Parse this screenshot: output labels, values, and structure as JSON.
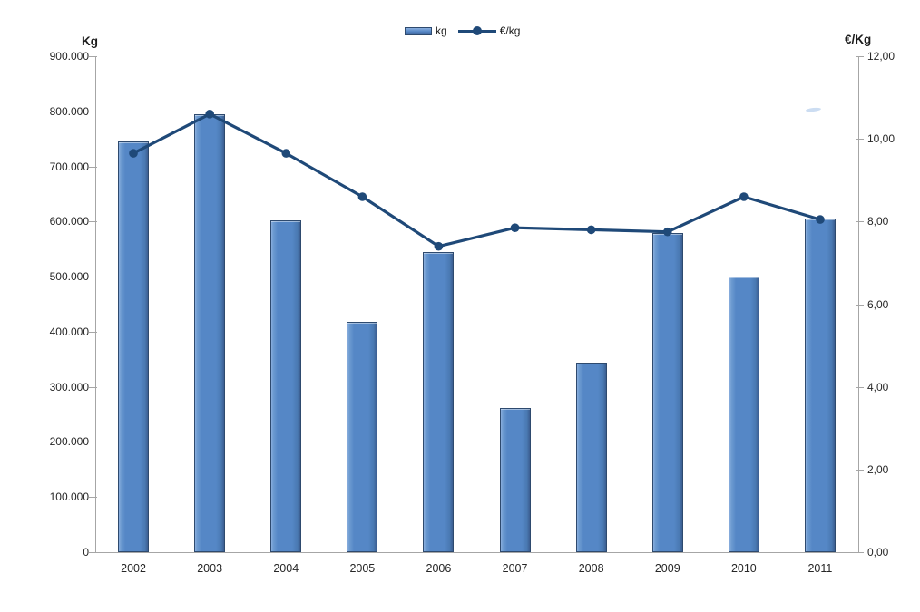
{
  "chart_data": {
    "type": "bar+line combo",
    "categories": [
      "2002",
      "2003",
      "2004",
      "2005",
      "2006",
      "2007",
      "2008",
      "2009",
      "2010",
      "2011"
    ],
    "series": [
      {
        "name": "kg",
        "type": "bar",
        "axis": "left",
        "values": [
          745000,
          795000,
          603000,
          418000,
          545000,
          262000,
          344000,
          580000,
          501000,
          605000
        ],
        "color": "#5587c6"
      },
      {
        "name": "€/kg",
        "type": "line",
        "axis": "right",
        "values": [
          9.65,
          10.6,
          9.65,
          8.6,
          7.4,
          7.85,
          7.8,
          7.75,
          8.6,
          8.05
        ],
        "color": "#1f4978"
      }
    ],
    "left_axis": {
      "title": "Kg",
      "min": 0,
      "max": 900000,
      "step": 100000,
      "tick_labels": [
        "0",
        "100.000",
        "200.000",
        "300.000",
        "400.000",
        "500.000",
        "600.000",
        "700.000",
        "800.000",
        "900.000"
      ]
    },
    "right_axis": {
      "title": "€/Kg",
      "min": 0,
      "max": 12,
      "step": 2,
      "tick_labels": [
        "0,00",
        "2,00",
        "4,00",
        "6,00",
        "8,00",
        "10,00",
        "12,00"
      ]
    },
    "legend": {
      "position": "top-center",
      "items": [
        {
          "label": "kg",
          "swatch": "bar-swatch"
        },
        {
          "label": "€/kg",
          "swatch": "line-swatch"
        }
      ]
    },
    "grid": false,
    "title": "",
    "colors": {
      "bar_fill": "#5587c6",
      "bar_border": "#2e4a6e",
      "line": "#1f4978",
      "axis": "#a6a6a6",
      "text": "#262626"
    }
  }
}
